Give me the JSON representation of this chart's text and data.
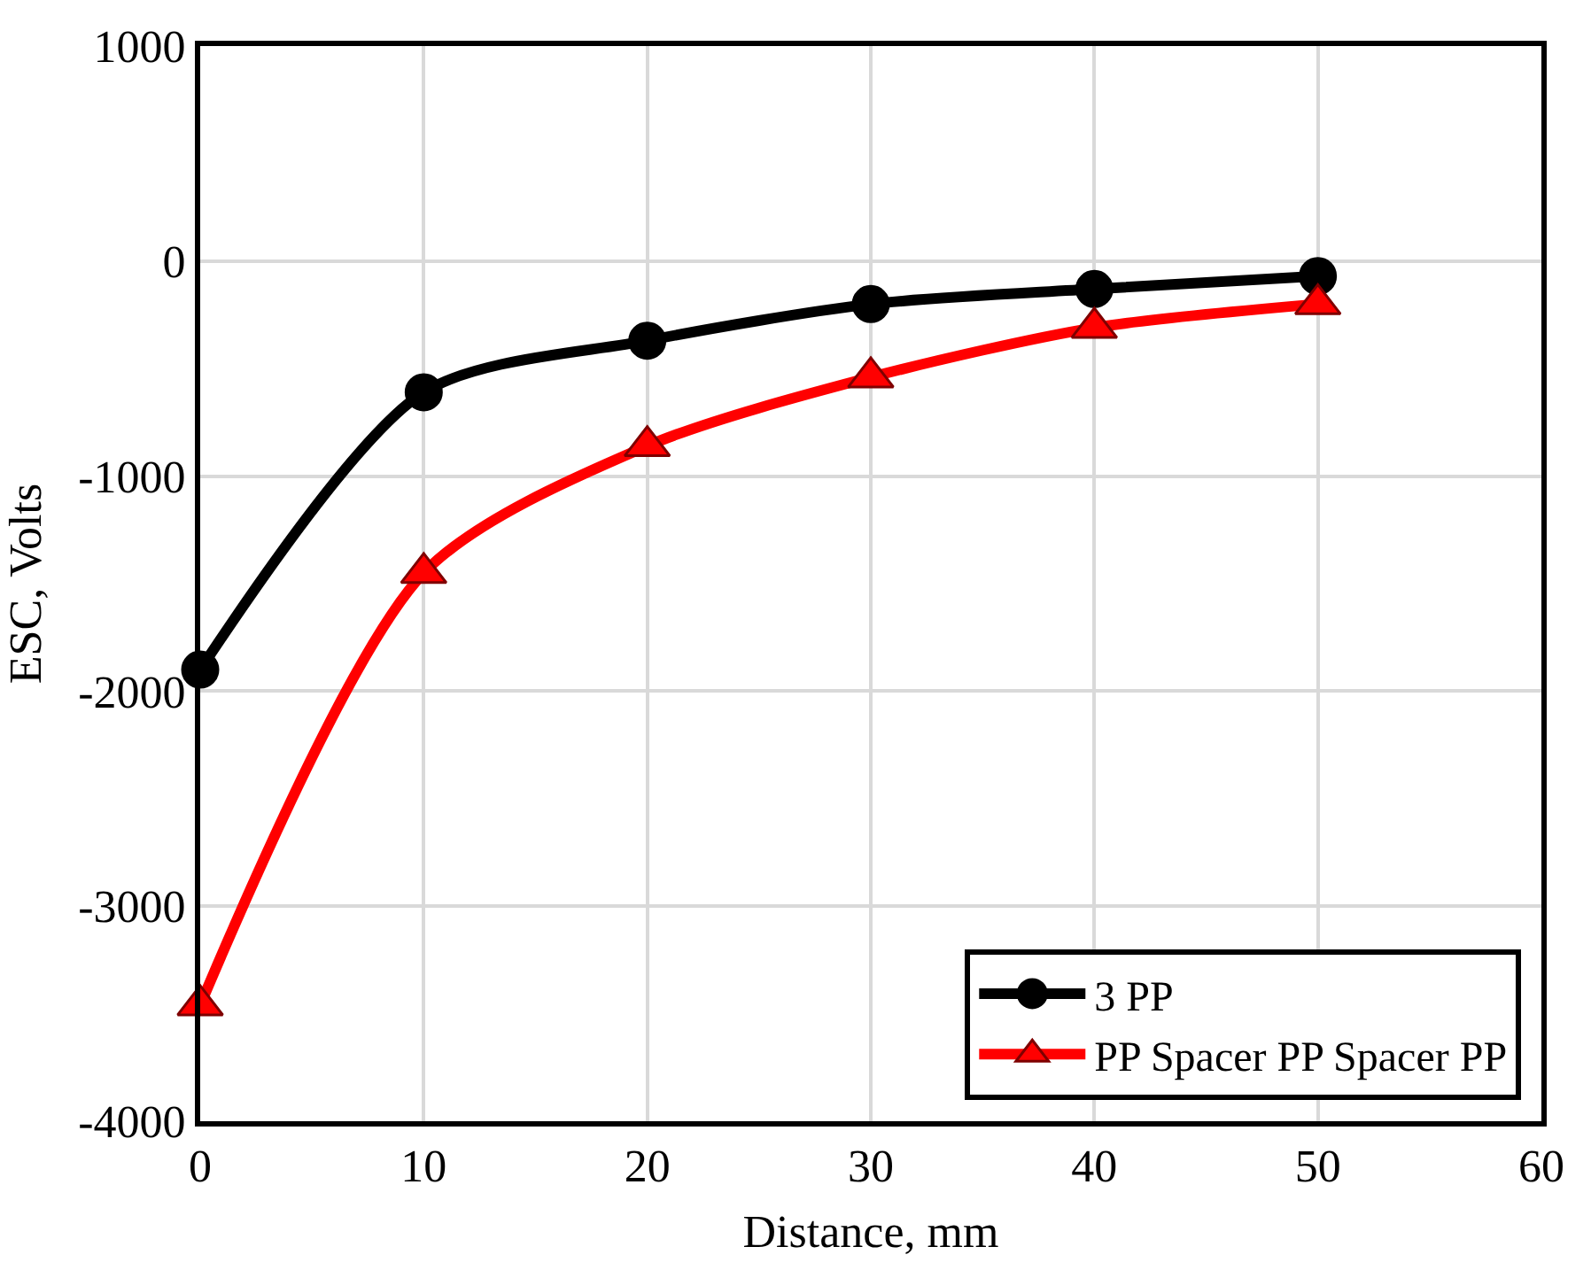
{
  "chart_data": {
    "type": "line",
    "xlabel": "Distance, mm",
    "ylabel": "ESC, Volts",
    "x": [
      0,
      10,
      20,
      30,
      40,
      50
    ],
    "series": [
      {
        "name": "3 PP",
        "color": "#000000",
        "marker": "circle",
        "values": [
          -1900,
          -610,
          -370,
          -200,
          -130,
          -70
        ]
      },
      {
        "name": "PP Spacer PP Spacer PP",
        "color": "#ff0000",
        "marker": "triangle",
        "values": [
          -3460,
          -1450,
          -860,
          -540,
          -310,
          -200
        ]
      }
    ],
    "xlim": [
      0,
      60
    ],
    "xticks": [
      0,
      10,
      20,
      30,
      40,
      50,
      60
    ],
    "ylim": [
      -4000,
      1000
    ],
    "yticks": [
      -4000,
      -3000,
      -2000,
      -1000,
      0,
      1000
    ],
    "grid": true,
    "legend": "bottom right",
    "line_style": "solid"
  }
}
